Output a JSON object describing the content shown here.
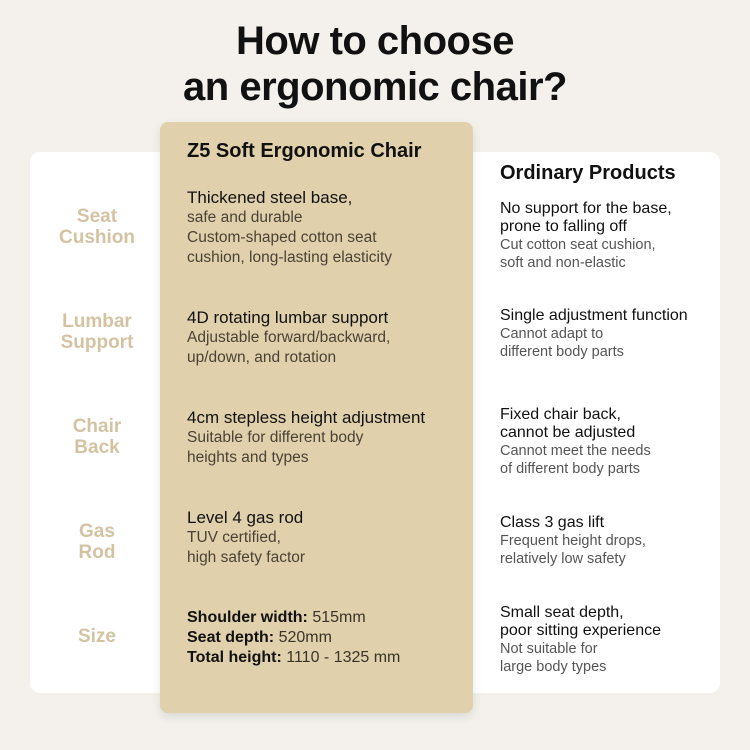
{
  "title": {
    "line1": "How to choose",
    "line2": "an ergonomic chair?"
  },
  "rows": [
    {
      "label1": "Seat",
      "label2": "Cushion"
    },
    {
      "label1": "Lumbar",
      "label2": "Support"
    },
    {
      "label1": "Chair",
      "label2": "Back"
    },
    {
      "label1": "Gas",
      "label2": "Rod"
    },
    {
      "label1": "Size",
      "label2": ""
    }
  ],
  "featured": {
    "title": "Z5 Soft Ergonomic Chair",
    "cells": [
      {
        "head": "Thickened steel base,",
        "sub": [
          "safe and durable",
          "Custom-shaped cotton seat",
          "cushion, long-lasting elasticity"
        ]
      },
      {
        "head": "4D rotating lumbar support",
        "sub": [
          "Adjustable forward/backward,",
          "up/down, and rotation"
        ]
      },
      {
        "head": "4cm stepless height adjustment",
        "sub": [
          "Suitable for different body",
          "heights and types"
        ]
      },
      {
        "head": "Level 4 gas rod",
        "sub": [
          "TUV certified,",
          "high safety factor"
        ]
      }
    ],
    "specs": [
      {
        "key": "Shoulder width: ",
        "value": "515mm"
      },
      {
        "key": "Seat depth: ",
        "value": "520mm"
      },
      {
        "key": "Total height: ",
        "value": "1110 - 1325 mm"
      }
    ]
  },
  "ordinary": {
    "title": "Ordinary Products",
    "cells": [
      {
        "head": [
          "No support for the base,",
          "prone to falling off"
        ],
        "sub": [
          "Cut cotton seat cushion,",
          "soft and non-elastic"
        ]
      },
      {
        "head": [
          "Single adjustment function"
        ],
        "sub": [
          "Cannot adapt to",
          "different body parts"
        ]
      },
      {
        "head": [
          "Fixed chair back,",
          "cannot be adjusted"
        ],
        "sub": [
          "Cannot meet the needs",
          "of different body parts"
        ]
      },
      {
        "head": [
          "Class 3 gas lift"
        ],
        "sub": [
          "Frequent height drops,",
          "relatively low safety"
        ]
      },
      {
        "head": [
          "Small seat depth,",
          "poor sitting experience"
        ],
        "sub": [
          "Not suitable for",
          "large body types"
        ]
      }
    ]
  }
}
